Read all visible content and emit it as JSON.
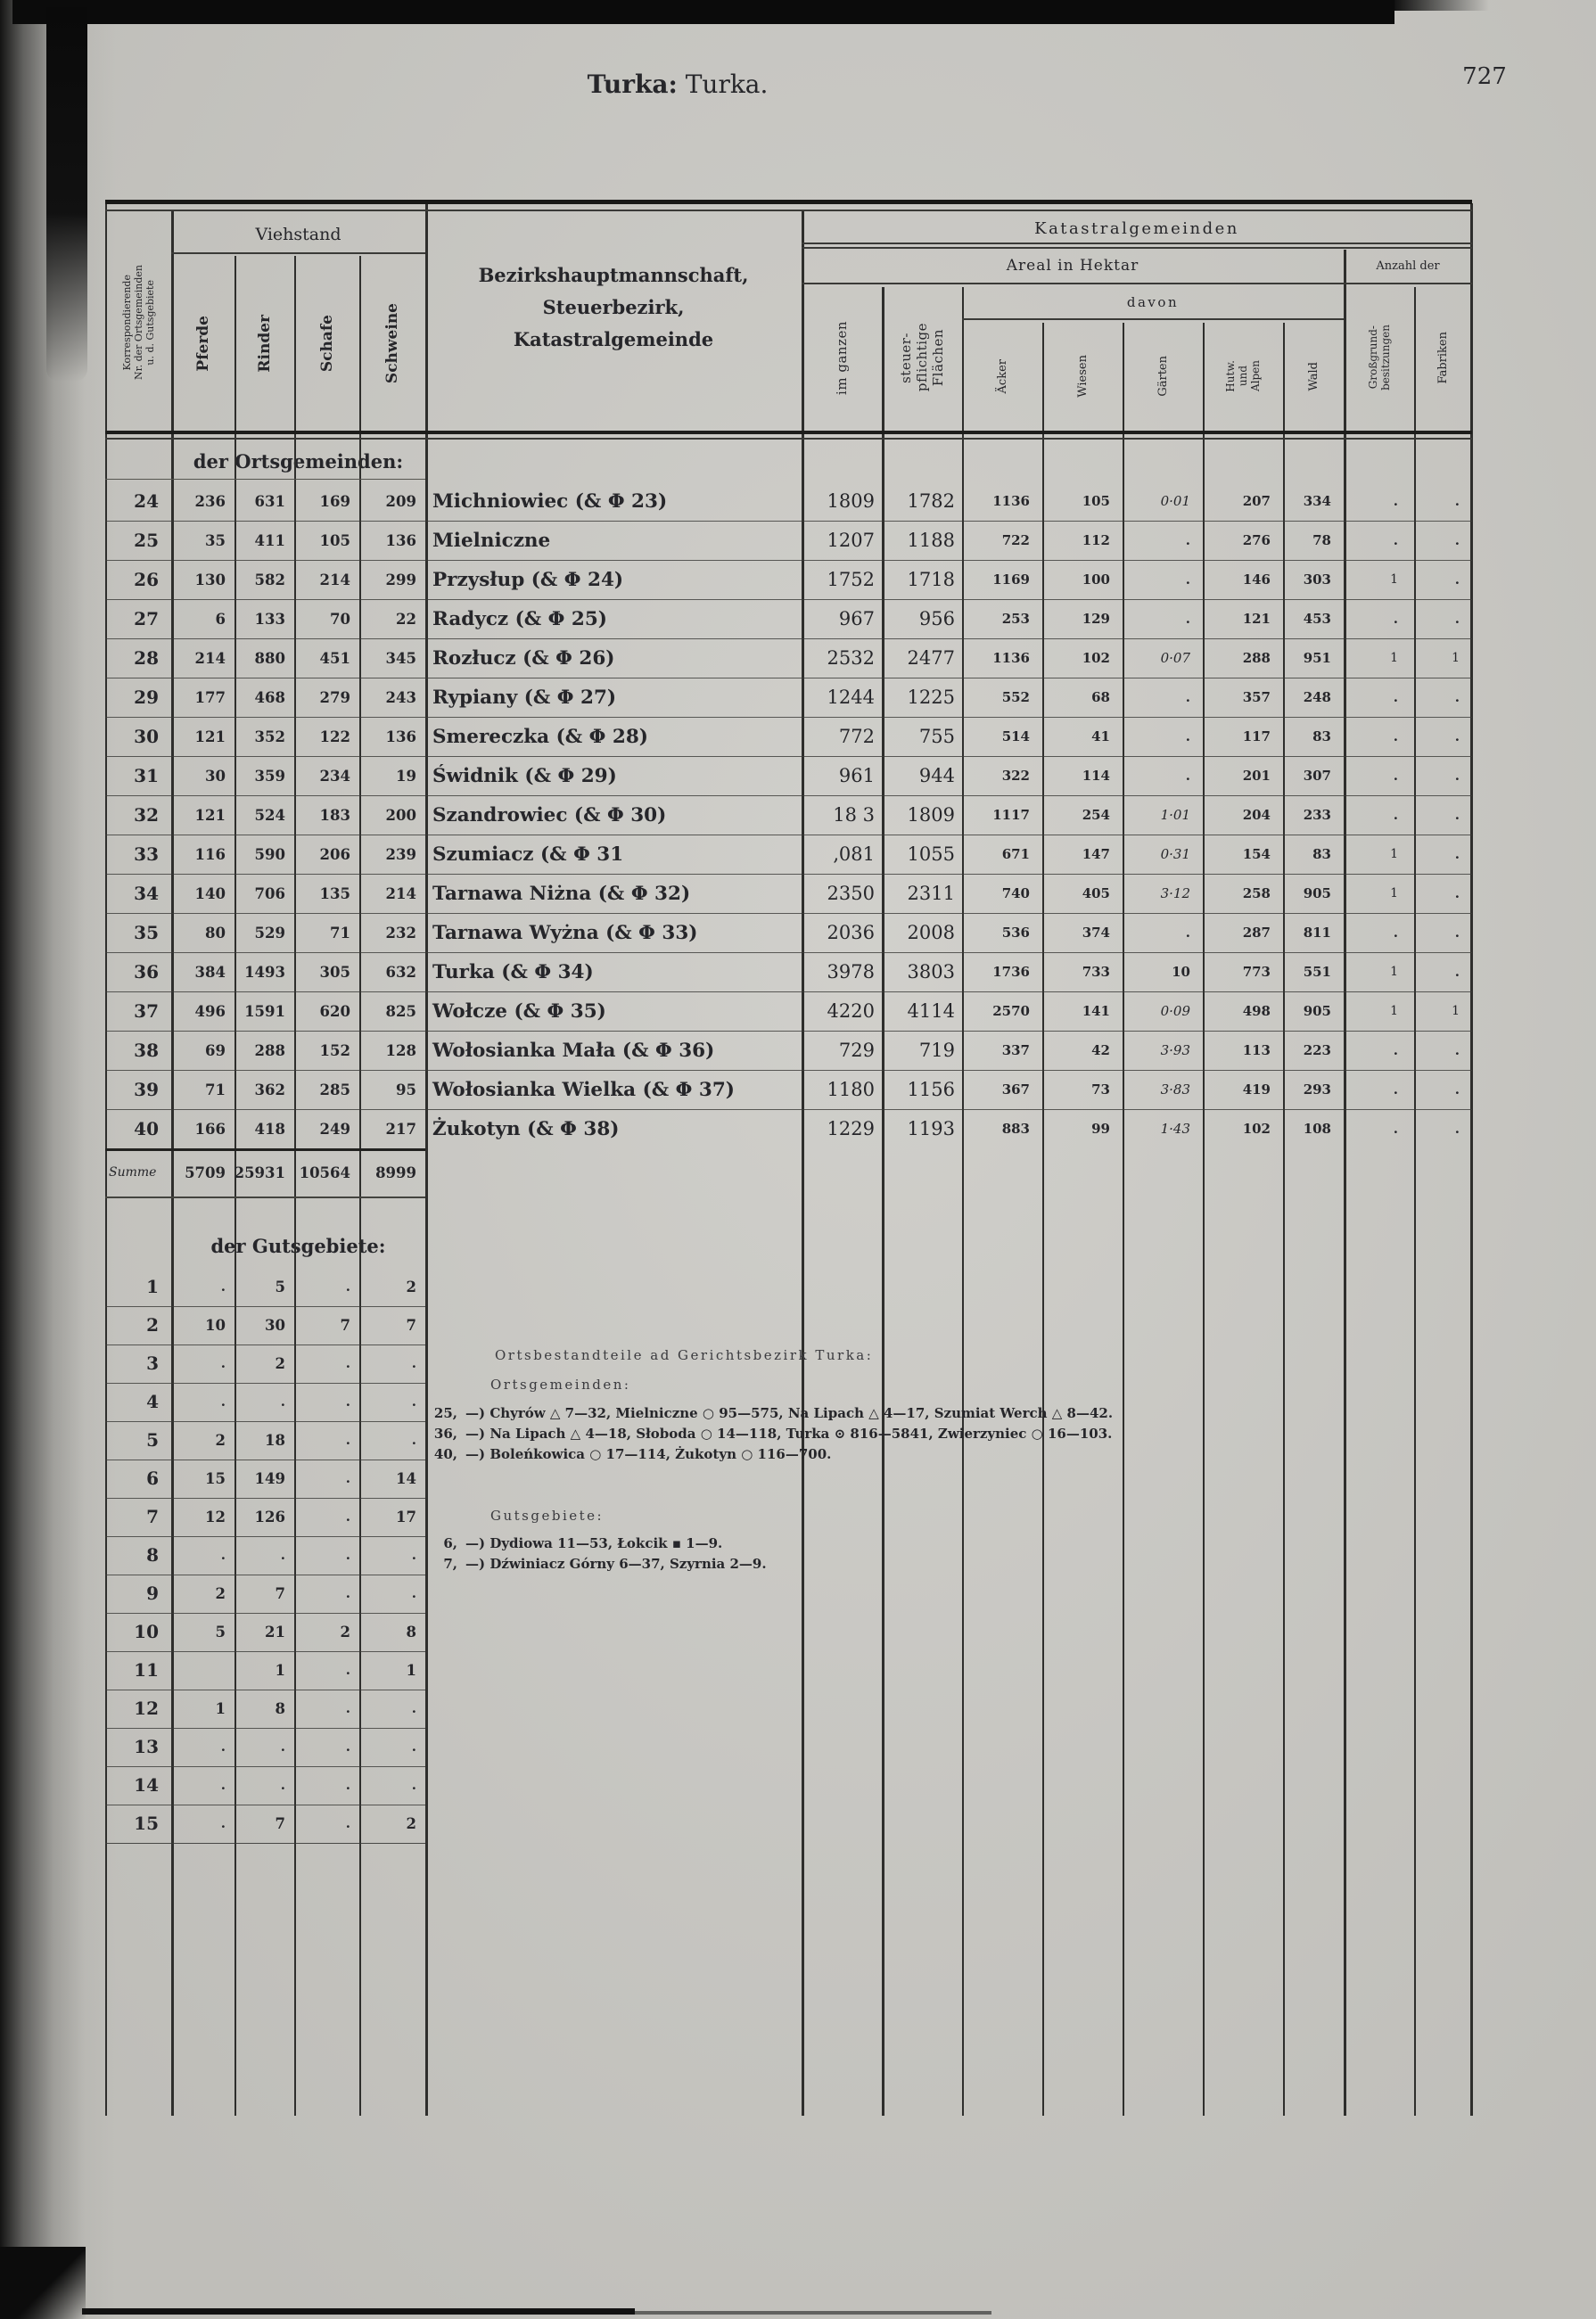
{
  "page": {
    "title_bold": "Turka:",
    "title_rest": "Turka.",
    "page_number": "727"
  },
  "table": {
    "header": {
      "korresp_l1": "Korrespondierende",
      "korresp_l2": "Nr. der Ortsgemeinden",
      "korresp_l3": "u. d. Gutsgebiete",
      "viehstand": "Viehstand",
      "pferde": "Pferde",
      "rinder": "Rinder",
      "schafe": "Schafe",
      "schweine": "Schweine",
      "name_l1": "Bezirkshauptmannschaft,",
      "name_l2": "Steuerbezirk,",
      "name_l3": "Katastralgemeinde",
      "katastral": "Katastralgemeinden",
      "areal": "Areal in Hektar",
      "anzahl": "Anzahl der",
      "im_ganzen": "im ganzen",
      "steuer_l1": "steuer-",
      "steuer_l2": "pflichtige",
      "steuer_l3": "Flächen",
      "davon": "davon",
      "aecker": "Äcker",
      "wiesen": "Wiesen",
      "gaerten": "Gärten",
      "hutw_l1": "Hutw.",
      "hutw_l2": "und",
      "hutw_l3": "Alpen",
      "wald": "Wald",
      "gross_l1": "Großgrund-",
      "gross_l2": "besitzungen",
      "fabriken": "Fabriken"
    },
    "section_ortsgemeinden": "der Ortsgemeinden:",
    "section_gutsgebiete": "der Gutsgebiete:",
    "summe_label": "Summe",
    "summe": [
      "5709",
      "25931",
      "10564",
      "8999"
    ],
    "rows": [
      [
        "24",
        "236",
        "631",
        "169",
        "209",
        "Michniowiec (& Φ 23)",
        "1809",
        "1782",
        "1136",
        "105",
        "0·01",
        "207",
        "334",
        ".",
        "."
      ],
      [
        "25",
        "35",
        "411",
        "105",
        "136",
        "Mielniczne",
        "1207",
        "1188",
        "722",
        "112",
        ".",
        "276",
        "78",
        ".",
        "."
      ],
      [
        "26",
        "130",
        "582",
        "214",
        "299",
        "Przysłup (& Φ 24)",
        "1752",
        "1718",
        "1169",
        "100",
        ".",
        "146",
        "303",
        "1",
        "."
      ],
      [
        "27",
        "6",
        "133",
        "70",
        "22",
        "Radycz (& Φ 25)",
        "967",
        "956",
        "253",
        "129",
        ".",
        "121",
        "453",
        ".",
        "."
      ],
      [
        "28",
        "214",
        "880",
        "451",
        "345",
        "Rozłucz (& Φ 26)",
        "2532",
        "2477",
        "1136",
        "102",
        "0·07",
        "288",
        "951",
        "1",
        "1"
      ],
      [
        "29",
        "177",
        "468",
        "279",
        "243",
        "Rypiany (& Φ 27)",
        "1244",
        "1225",
        "552",
        "68",
        ".",
        "357",
        "248",
        ".",
        "."
      ],
      [
        "30",
        "121",
        "352",
        "122",
        "136",
        "Smereczka (& Φ 28)",
        "772",
        "755",
        "514",
        "41",
        ".",
        "117",
        "83",
        ".",
        "."
      ],
      [
        "31",
        "30",
        "359",
        "234",
        "19",
        "Świdnik (& Φ 29)",
        "961",
        "944",
        "322",
        "114",
        ".",
        "201",
        "307",
        ".",
        "."
      ],
      [
        "32",
        "121",
        "524",
        "183",
        "200",
        "Szandrowiec (& Φ 30)",
        "18 3",
        "1809",
        "1117",
        "254",
        "1·01",
        "204",
        "233",
        ".",
        "."
      ],
      [
        "33",
        "116",
        "590",
        "206",
        "239",
        "Szumiacz (& Φ 31",
        "‚081",
        "1055",
        "671",
        "147",
        "0·31",
        "154",
        "83",
        "1",
        "."
      ],
      [
        "34",
        "140",
        "706",
        "135",
        "214",
        "Tarnawa Niżna (& Φ 32)",
        "2350",
        "2311",
        "740",
        "405",
        "3·12",
        "258",
        "905",
        "1",
        "."
      ],
      [
        "35",
        "80",
        "529",
        "71",
        "232",
        "Tarnawa Wyżna (& Φ 33)",
        "2036",
        "2008",
        "536",
        "374",
        ".",
        "287",
        "811",
        ".",
        "."
      ],
      [
        "36",
        "384",
        "1493",
        "305",
        "632",
        "Turka (& Φ 34)",
        "3978",
        "3803",
        "1736",
        "733",
        "10",
        "773",
        "551",
        "1",
        "."
      ],
      [
        "37",
        "496",
        "1591",
        "620",
        "825",
        "Wołcze (& Φ 35)",
        "4220",
        "4114",
        "2570",
        "141",
        "0·09",
        "498",
        "905",
        "1",
        "1"
      ],
      [
        "38",
        "69",
        "288",
        "152",
        "128",
        "Wołosianka Mała (& Φ 36)",
        "729",
        "719",
        "337",
        "42",
        "3·93",
        "113",
        "223",
        ".",
        "."
      ],
      [
        "39",
        "71",
        "362",
        "285",
        "95",
        "Wołosianka Wielka (& Φ 37)",
        "1180",
        "1156",
        "367",
        "73",
        "3·83",
        "419",
        "293",
        ".",
        "."
      ],
      [
        "40",
        "166",
        "418",
        "249",
        "217",
        "Żukotyn (& Φ 38)",
        "1229",
        "1193",
        "883",
        "99",
        "1·43",
        "102",
        "108",
        ".",
        "."
      ]
    ],
    "guts_rows": [
      [
        "1",
        ".",
        "5",
        ".",
        "2"
      ],
      [
        "2",
        "10",
        "30",
        "7",
        "7"
      ],
      [
        "3",
        ".",
        "2",
        ".",
        "."
      ],
      [
        "4",
        ".",
        ".",
        ".",
        "."
      ],
      [
        "5",
        "2",
        "18",
        ".",
        "."
      ],
      [
        "6",
        "15",
        "149",
        ".",
        "14"
      ],
      [
        "7",
        "12",
        "126",
        ".",
        "17"
      ],
      [
        "8",
        ".",
        ".",
        ".",
        "."
      ],
      [
        "9",
        "2",
        "7",
        ".",
        "."
      ],
      [
        "10",
        "5",
        "21",
        "2",
        "8"
      ],
      [
        "11",
        "",
        "1",
        ".",
        "1"
      ],
      [
        "12",
        "1",
        "8",
        ".",
        "."
      ],
      [
        "13",
        ".",
        ".",
        ".",
        "."
      ],
      [
        "14",
        ".",
        ".",
        ".",
        "."
      ],
      [
        "15",
        ".",
        "7",
        ".",
        "2"
      ]
    ]
  },
  "notes": {
    "heading1": "Ortsbestandteile ad Gerichtsbezirk Turka:",
    "sub1": "Ortsgemeinden:",
    "orts_lines": [
      {
        "nr": "25,",
        "text": "—) Chyrów △ 7—32, Mielniczne ○ 95—575, Na Lipach △ 4—17, Szumiat Werch △ 8—42."
      },
      {
        "nr": "36,",
        "text": "—) Na Lipach △ 4—18, Słoboda ○ 14—118, Turka ⊙ 816—5841, Zwierzyniec ○ 16—103."
      },
      {
        "nr": "40,",
        "text": "—) Boleńkowica ○ 17—114, Żukotyn ○ 116—700."
      }
    ],
    "sub2": "Gutsgebiete:",
    "guts_lines": [
      {
        "nr": "6,",
        "text": "—) Dydiowa 11—53, Łokcik ▪ 1—9."
      },
      {
        "nr": "7,",
        "text": "—) Dźwiniacz Górny 6—37, Szyrnia 2—9."
      }
    ]
  }
}
